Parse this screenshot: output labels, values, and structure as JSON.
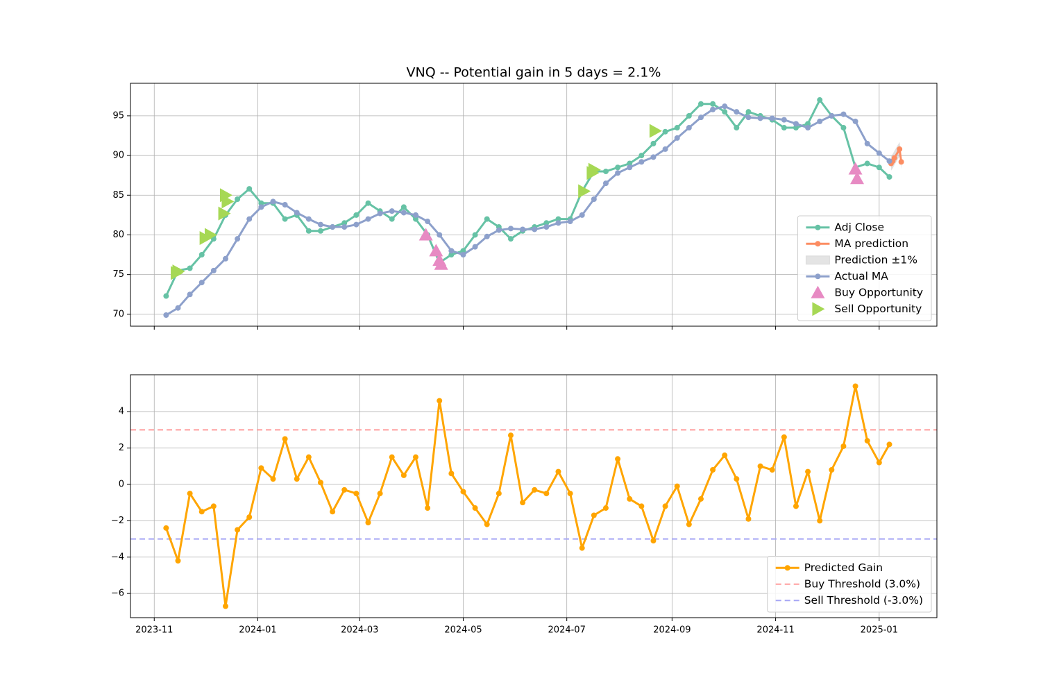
{
  "chart_data": [
    {
      "type": "line",
      "title": "VNQ -- Potential gain in 5 days = 2.1%",
      "x": [
        "2023-11-08",
        "2023-11-15",
        "2023-11-22",
        "2023-11-29",
        "2023-12-06",
        "2023-12-13",
        "2023-12-20",
        "2023-12-27",
        "2024-01-03",
        "2024-01-10",
        "2024-01-17",
        "2024-01-24",
        "2024-01-31",
        "2024-02-07",
        "2024-02-14",
        "2024-02-21",
        "2024-02-28",
        "2024-03-06",
        "2024-03-13",
        "2024-03-20",
        "2024-03-27",
        "2024-04-03",
        "2024-04-10",
        "2024-04-17",
        "2024-04-24",
        "2024-05-01",
        "2024-05-08",
        "2024-05-15",
        "2024-05-22",
        "2024-05-29",
        "2024-06-05",
        "2024-06-12",
        "2024-06-19",
        "2024-06-26",
        "2024-07-03",
        "2024-07-10",
        "2024-07-17",
        "2024-07-24",
        "2024-07-31",
        "2024-08-07",
        "2024-08-14",
        "2024-08-21",
        "2024-08-28",
        "2024-09-04",
        "2024-09-11",
        "2024-09-18",
        "2024-09-25",
        "2024-10-02",
        "2024-10-09",
        "2024-10-16",
        "2024-10-23",
        "2024-10-30",
        "2024-11-06",
        "2024-11-13",
        "2024-11-20",
        "2024-11-27",
        "2024-12-04",
        "2024-12-11",
        "2024-12-18",
        "2024-12-25",
        "2025-01-01",
        "2025-01-07"
      ],
      "series": [
        {
          "name": "Adj Close",
          "kind": "line",
          "color": "#66c2a5",
          "values": [
            72.3,
            75.5,
            75.8,
            77.5,
            79.5,
            82.5,
            84.5,
            85.8,
            84.0,
            84.0,
            82.0,
            82.5,
            80.5,
            80.5,
            81.0,
            81.5,
            82.5,
            84.0,
            83.0,
            82.0,
            83.5,
            82.0,
            80.0,
            76.5,
            77.5,
            78.0,
            80.0,
            82.0,
            81.0,
            79.5,
            80.5,
            81.0,
            81.5,
            82.0,
            82.0,
            85.5,
            88.0,
            88.0,
            88.5,
            89.0,
            90.0,
            91.5,
            93.0,
            93.5,
            95.0,
            96.5,
            96.5,
            95.5,
            93.5,
            95.5,
            95.0,
            94.5,
            93.5,
            93.5,
            94.0,
            97.0,
            95.0,
            93.5,
            88.5,
            89.0,
            88.5,
            87.3
          ]
        },
        {
          "name": "MA prediction",
          "kind": "line",
          "color": "#fc8d62",
          "x": [
            "2025-01-08",
            "2025-01-09",
            "2025-01-10",
            "2025-01-13",
            "2025-01-14"
          ],
          "values": [
            89.0,
            89.3,
            89.7,
            90.8,
            89.2
          ]
        },
        {
          "name": "Prediction ±1%",
          "kind": "band",
          "color": "#bbbbbb",
          "x": [
            "2025-01-08",
            "2025-01-09",
            "2025-01-10",
            "2025-01-13",
            "2025-01-14"
          ],
          "lower": [
            88.1,
            88.4,
            88.8,
            89.9,
            88.3
          ],
          "upper": [
            89.9,
            90.2,
            90.6,
            91.7,
            90.1
          ]
        },
        {
          "name": "Actual MA",
          "kind": "line",
          "color": "#8da0cb",
          "values": [
            69.9,
            70.8,
            72.5,
            74.0,
            75.5,
            77.0,
            79.5,
            82.0,
            83.5,
            84.2,
            83.8,
            82.8,
            82.0,
            81.3,
            81.0,
            81.0,
            81.3,
            82.0,
            82.7,
            83.0,
            82.8,
            82.5,
            81.7,
            80.0,
            78.0,
            77.5,
            78.5,
            79.8,
            80.6,
            80.8,
            80.7,
            80.7,
            81.0,
            81.5,
            81.7,
            82.5,
            84.5,
            86.5,
            87.8,
            88.5,
            89.2,
            89.8,
            90.8,
            92.2,
            93.5,
            94.8,
            95.8,
            96.2,
            95.5,
            94.8,
            94.7,
            94.7,
            94.5,
            94.0,
            93.5,
            94.3,
            95.0,
            95.2,
            94.3,
            91.5,
            90.3,
            89.3
          ]
        },
        {
          "name": "Buy Opportunity",
          "kind": "scatter",
          "marker": "^",
          "color": "#e78ac3",
          "x": [
            "2024-04-09",
            "2024-04-15",
            "2024-04-17",
            "2024-04-18",
            "2024-12-18",
            "2024-12-19"
          ],
          "values": [
            80.0,
            78.0,
            76.8,
            76.3,
            88.3,
            87.1
          ]
        },
        {
          "name": "Sell Opportunity",
          "kind": "scatter",
          "marker": ">",
          "color": "#a6d854",
          "x": [
            "2023-11-14",
            "2023-11-15",
            "2023-12-01",
            "2023-12-04",
            "2023-12-12",
            "2023-12-13",
            "2023-12-14",
            "2024-07-11",
            "2024-07-16",
            "2024-07-17",
            "2024-08-22"
          ],
          "values": [
            75.2,
            75.4,
            79.6,
            80.0,
            82.7,
            85.0,
            84.2,
            85.5,
            87.8,
            88.2,
            93.1
          ]
        }
      ],
      "xlim": [
        "2023-10-18",
        "2025-02-04"
      ],
      "xticks": [
        "2023-11",
        "2024-01",
        "2024-03",
        "2024-05",
        "2024-07",
        "2024-09",
        "2024-11",
        "2025-01"
      ],
      "xtick_labels": false,
      "ylim": [
        68.5,
        99.1
      ],
      "yticks": [
        70,
        75,
        80,
        85,
        90,
        95
      ],
      "grid": true,
      "legend": "lower right"
    },
    {
      "type": "line",
      "x": [
        "2023-11-08",
        "2023-11-15",
        "2023-11-22",
        "2023-11-29",
        "2023-12-06",
        "2023-12-13",
        "2023-12-20",
        "2023-12-27",
        "2024-01-03",
        "2024-01-10",
        "2024-01-17",
        "2024-01-24",
        "2024-01-31",
        "2024-02-07",
        "2024-02-14",
        "2024-02-21",
        "2024-02-28",
        "2024-03-06",
        "2024-03-13",
        "2024-03-20",
        "2024-03-27",
        "2024-04-03",
        "2024-04-10",
        "2024-04-17",
        "2024-04-24",
        "2024-05-01",
        "2024-05-08",
        "2024-05-15",
        "2024-05-22",
        "2024-05-29",
        "2024-06-05",
        "2024-06-12",
        "2024-06-19",
        "2024-06-26",
        "2024-07-03",
        "2024-07-10",
        "2024-07-17",
        "2024-07-24",
        "2024-07-31",
        "2024-08-07",
        "2024-08-14",
        "2024-08-21",
        "2024-08-28",
        "2024-09-04",
        "2024-09-11",
        "2024-09-18",
        "2024-09-25",
        "2024-10-02",
        "2024-10-09",
        "2024-10-16",
        "2024-10-23",
        "2024-10-30",
        "2024-11-06",
        "2024-11-13",
        "2024-11-20",
        "2024-11-27",
        "2024-12-04",
        "2024-12-11",
        "2024-12-18",
        "2024-12-25",
        "2025-01-01",
        "2025-01-07"
      ],
      "series": [
        {
          "name": "Predicted Gain",
          "kind": "line",
          "color": "#ffa500",
          "values": [
            -2.4,
            -4.2,
            -0.5,
            -1.5,
            -1.2,
            -6.7,
            -2.5,
            -1.8,
            0.9,
            0.3,
            2.5,
            0.3,
            1.5,
            0.1,
            -1.5,
            -0.3,
            -0.5,
            -2.1,
            -0.5,
            1.5,
            0.5,
            1.5,
            -1.3,
            4.6,
            0.6,
            -0.4,
            -1.3,
            -2.2,
            -0.5,
            2.7,
            -1.0,
            -0.3,
            -0.5,
            0.7,
            -0.5,
            -3.5,
            -1.7,
            -1.3,
            1.4,
            -0.8,
            -1.2,
            -3.1,
            -1.2,
            -0.1,
            -2.2,
            -0.8,
            0.8,
            1.6,
            0.3,
            -1.9,
            1.0,
            0.8,
            2.6,
            -1.2,
            0.7,
            -2.0,
            0.8,
            2.1,
            5.4,
            2.4,
            1.2,
            2.2
          ]
        },
        {
          "name": "Buy Threshold (3.0%)",
          "kind": "hline",
          "color": "#ff9e9e",
          "value": 3
        },
        {
          "name": "Sell Threshold (-3.0%)",
          "kind": "hline",
          "color": "#a6a6f5",
          "value": -3
        }
      ],
      "xlim": [
        "2023-10-18",
        "2025-02-04"
      ],
      "xticks": [
        "2023-11",
        "2024-01",
        "2024-03",
        "2024-05",
        "2024-07",
        "2024-09",
        "2024-11",
        "2025-01"
      ],
      "xtick_labels": true,
      "ylim": [
        -7.33,
        6.03
      ],
      "yticks": [
        {
          "value": -6,
          "label": "−6"
        },
        {
          "value": -4,
          "label": "−4"
        },
        {
          "value": -2,
          "label": "−2"
        },
        0,
        2,
        4
      ],
      "grid": true,
      "legend": "lower right"
    }
  ]
}
